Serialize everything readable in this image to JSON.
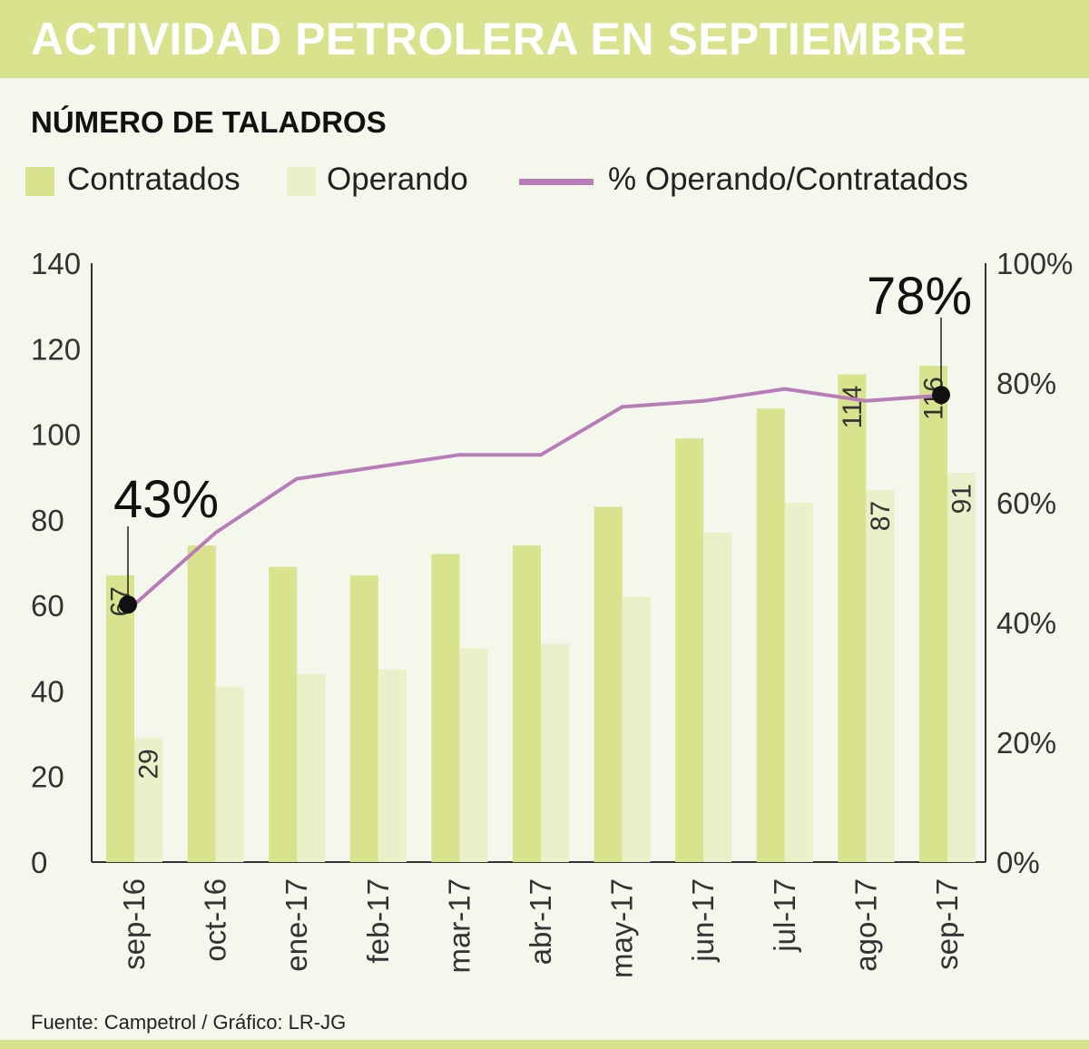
{
  "header": {
    "title": "ACTIVIDAD PETROLERA EN SEPTIEMBRE",
    "subtitle": "NÚMERO DE TALADROS"
  },
  "legend": {
    "contratados": "Contratados",
    "operando": "Operando",
    "porcentaje": "% Operando/Contratados"
  },
  "footer": {
    "source": "Fuente: Campetrol / Gráfico: LR-JG"
  },
  "colors": {
    "contratados": "#d9e28c",
    "operando": "#eaf0c9",
    "line": "#b87db8",
    "header": "#d9e28c",
    "background": "#f3f7ec"
  },
  "chart_data": {
    "type": "bar",
    "title": "NÚMERO DE TALADROS",
    "categories": [
      "sep-16",
      "oct-16",
      "ene-17",
      "feb-17",
      "mar-17",
      "abr-17",
      "may-17",
      "jun-17",
      "jul-17",
      "ago-17",
      "sep-17"
    ],
    "series": [
      {
        "name": "Contratados",
        "type": "bar",
        "values": [
          67,
          74,
          69,
          67,
          72,
          74,
          83,
          99,
          106,
          114,
          116
        ]
      },
      {
        "name": "Operando",
        "type": "bar",
        "values": [
          29,
          41,
          44,
          45,
          50,
          51,
          62,
          77,
          84,
          87,
          91
        ]
      },
      {
        "name": "% Operando/Contratados",
        "type": "line",
        "axis": "right",
        "values": [
          43,
          55,
          64,
          66,
          68,
          68,
          76,
          77,
          79,
          77,
          78
        ]
      }
    ],
    "ylim": [
      0,
      140
    ],
    "yticks": [
      "0",
      "20",
      "40",
      "60",
      "80",
      "100",
      "120",
      "140"
    ],
    "y2lim": [
      0,
      100
    ],
    "y2ticks": [
      "0%",
      "20%",
      "40%",
      "60%",
      "80%",
      "100%"
    ],
    "data_labels": [
      {
        "series": 0,
        "index": 0,
        "text": "67"
      },
      {
        "series": 1,
        "index": 0,
        "text": "29"
      },
      {
        "series": 0,
        "index": 9,
        "text": "114"
      },
      {
        "series": 1,
        "index": 9,
        "text": "87"
      },
      {
        "series": 0,
        "index": 10,
        "text": "116"
      },
      {
        "series": 1,
        "index": 10,
        "text": "91"
      }
    ],
    "annotations": [
      {
        "series": 2,
        "index": 0,
        "text": "43%"
      },
      {
        "series": 2,
        "index": 10,
        "text": "78%"
      }
    ],
    "legend_position": "top-left"
  }
}
